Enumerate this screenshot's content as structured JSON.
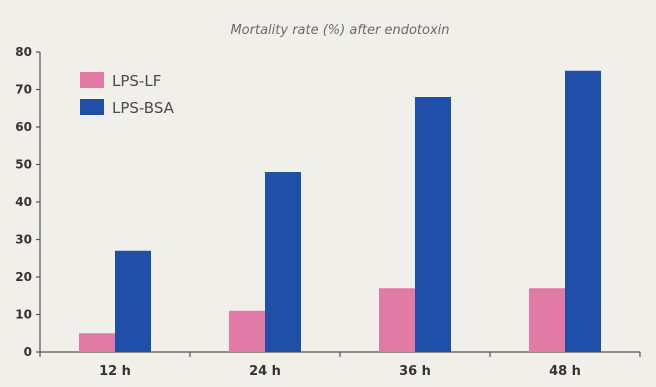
{
  "chart_data": {
    "type": "bar",
    "title": "Mortality rate (%) after endotoxin",
    "xlabel": "",
    "ylabel": "",
    "categories": [
      "12 h",
      "24 h",
      "36 h",
      "48 h"
    ],
    "series": [
      {
        "name": "LPS-LF",
        "color": "#e27aa6",
        "values": [
          5,
          11,
          17,
          17
        ]
      },
      {
        "name": "LPS-BSA",
        "color": "#1f4fa8",
        "values": [
          27,
          48,
          68,
          75
        ]
      }
    ],
    "ylim": [
      0,
      80
    ],
    "yticks": [
      "0",
      "10",
      "20",
      "30",
      "40",
      "50",
      "60",
      "70",
      "80"
    ],
    "legend_position": "top-left",
    "grid": false
  }
}
